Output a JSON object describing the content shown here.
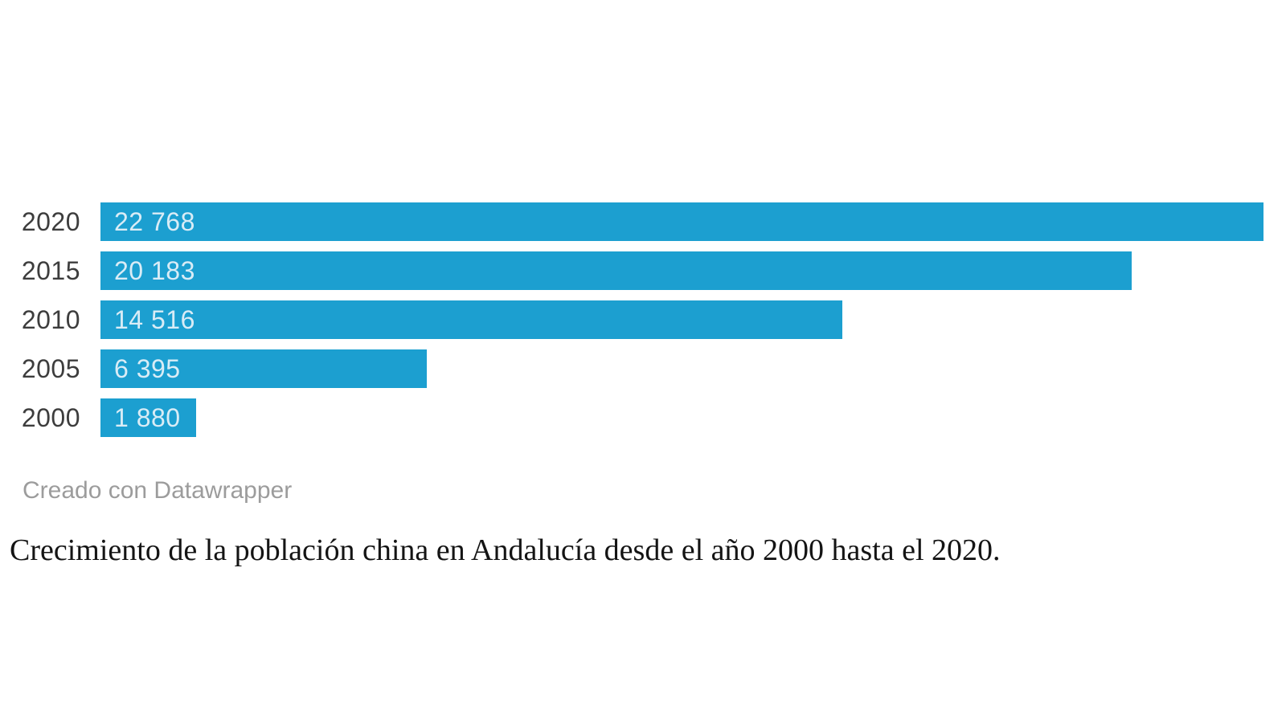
{
  "chart_data": {
    "type": "bar",
    "orientation": "horizontal",
    "categories": [
      "2020",
      "2015",
      "2010",
      "2005",
      "2000"
    ],
    "values": [
      22768,
      20183,
      14516,
      6395,
      1880
    ],
    "value_labels": [
      "22 768",
      "20 183",
      "14 516",
      "6 395",
      "1 880"
    ],
    "xlim": [
      0,
      22768
    ],
    "grid": false,
    "legend": false,
    "value_labels_position": "inside-start",
    "category_axis_side": "left"
  },
  "attribution": "Creado con Datawrapper",
  "caption": "Crecimiento de la población china en Andalucía desde el año 2000 hasta el 2020.",
  "colors": {
    "bar": "#1C9FD0",
    "category_label": "#3d3d3d",
    "value_label": "#d9ecf6",
    "attribution": "#9c9c9c",
    "caption": "#141414",
    "background": "#ffffff"
  }
}
